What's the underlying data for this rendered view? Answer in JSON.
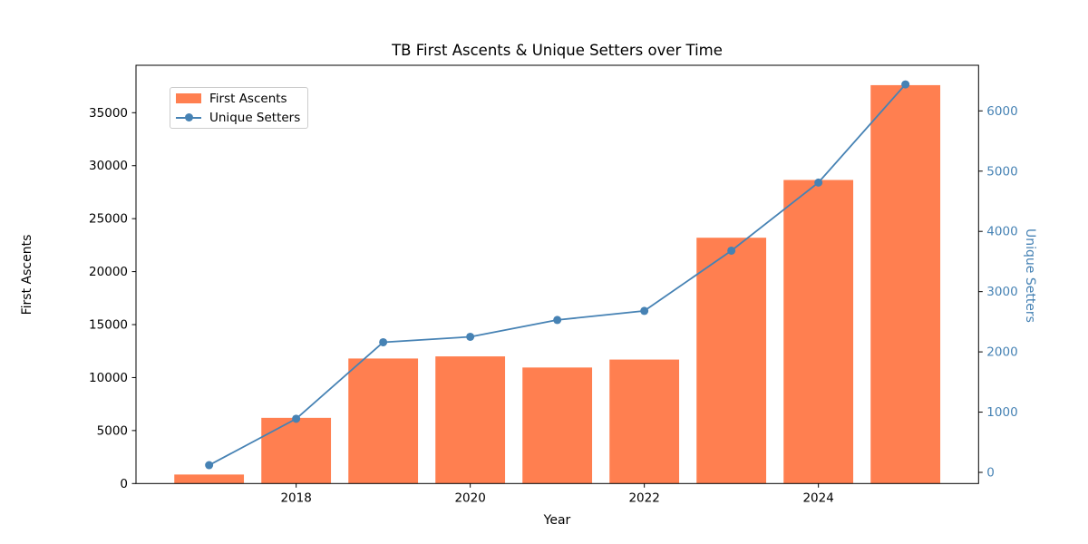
{
  "title": "TB First Ascents & Unique Setters over Time",
  "chart_data": {
    "type": "bar+line combo",
    "categories": [
      2017,
      2018,
      2019,
      2020,
      2021,
      2022,
      2023,
      2024,
      2025
    ],
    "series": [
      {
        "name": "First Ascents",
        "type": "bar",
        "axis": "left",
        "color": "#FF7F50",
        "values": [
          850,
          6200,
          11800,
          12000,
          10950,
          11700,
          23200,
          28650,
          37600
        ]
      },
      {
        "name": "Unique Setters",
        "type": "line",
        "axis": "right",
        "color": "#4682B4",
        "marker": "circle",
        "values": [
          120,
          890,
          2160,
          2250,
          2530,
          2680,
          3680,
          4810,
          6440
        ]
      }
    ],
    "xlabel": "Year",
    "ylabel_left": "First Ascents",
    "ylabel_right": "Unique Setters",
    "x_ticks": [
      2018,
      2020,
      2022,
      2024
    ],
    "y_ticks_left": [
      0,
      5000,
      10000,
      15000,
      20000,
      25000,
      30000,
      35000
    ],
    "y_ticks_right": [
      0,
      1000,
      2000,
      3000,
      4000,
      5000,
      6000
    ],
    "xlim": [
      2016.16,
      2025.84
    ],
    "ylim_left": [
      0,
      39476
    ],
    "ylim_right": [
      -185,
      6757
    ],
    "bar_width_years": 0.8,
    "grid": "off",
    "legend_position": "upper-left",
    "colors": {
      "bar": "#FF7F50",
      "line": "#4682B4",
      "right_axis_text": "#4682B4",
      "axis_text": "#000000",
      "spine": "#000000",
      "legend_border": "#cccccc"
    }
  }
}
